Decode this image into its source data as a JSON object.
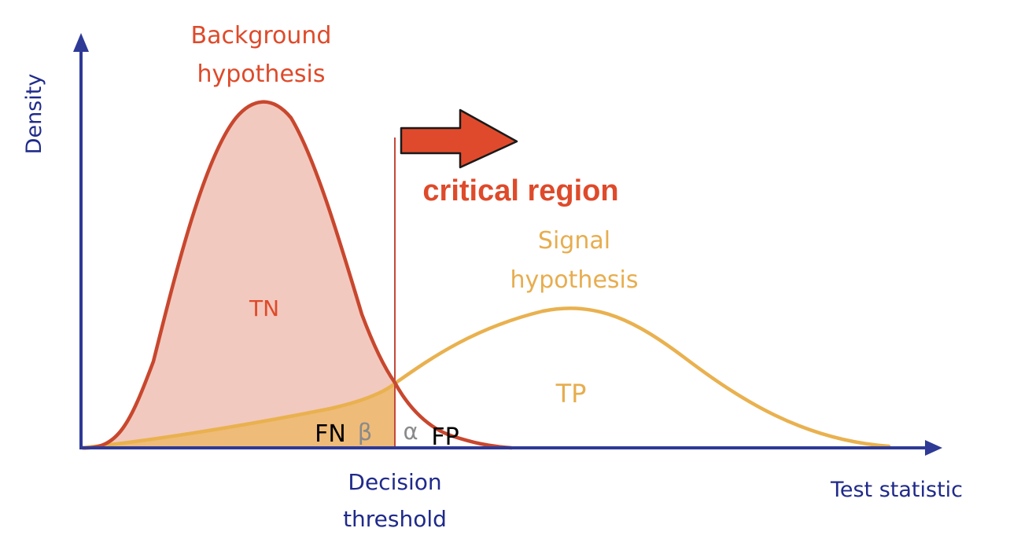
{
  "axes": {
    "y_label": "Density",
    "x_label": "Test statistic"
  },
  "background": {
    "title_line1": "Background",
    "title_line2": "hypothesis",
    "region_label": "TN"
  },
  "signal": {
    "title_line1": "Signal",
    "title_line2": "hypothesis",
    "region_label": "TP"
  },
  "threshold": {
    "label_line1": "Decision",
    "label_line2": "threshold"
  },
  "critical_region": {
    "label": "critical region"
  },
  "errors": {
    "fn_label": "FN",
    "beta_symbol": "β",
    "alpha_symbol": "α",
    "fp_label": "FP"
  },
  "colors": {
    "axis": "#2e3a96",
    "axis_text": "#1f2a8a",
    "background_curve": "#c8472e",
    "background_fill": "#f2c9be",
    "background_text": "#de4a2a",
    "signal_curve": "#e9b14f",
    "signal_fill": "#efbb78",
    "signal_text": "#e7ad4e",
    "arrow_fill": "#e04a2c",
    "symbol_gray": "#8a8a8a"
  }
}
